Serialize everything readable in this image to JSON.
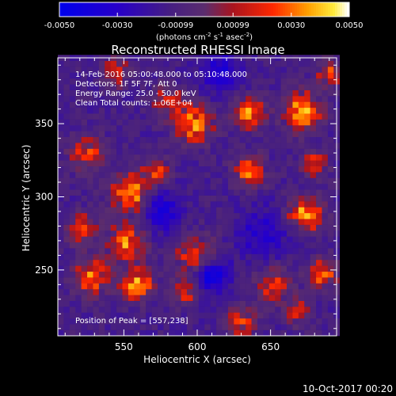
{
  "chart_data": {
    "type": "heatmap",
    "title": "Reconstructed RHESSI Image",
    "xlabel": "Heliocentric X (arcsec)",
    "ylabel": "Heliocentric Y (arcsec)",
    "xlim": [
      505,
      695
    ],
    "ylim": [
      205,
      395
    ],
    "xticks": [
      550,
      600,
      650
    ],
    "yticks": [
      250,
      300,
      350
    ],
    "colorbar": {
      "min": -0.005,
      "max": 0.005,
      "ticks": [
        "-0.0050",
        "-0.0030",
        "-0.00099",
        "0.00099",
        "0.0030",
        "0.0050"
      ],
      "tick_values": [
        -0.005,
        -0.003,
        -0.00099,
        0.00099,
        0.003,
        0.005
      ],
      "label_main": "(photons cm",
      "label_exp1": "-2",
      "label_mid1": " s",
      "label_exp2": "-1",
      "label_mid2": " asec",
      "label_exp3": "-2",
      "label_end": ")"
    },
    "annotations": [
      "14-Feb-2016 05:00:48.000 to 05:10:48.000",
      "Detectors: 1F 5F 7F, Att 0",
      "Energy Range: 25.0 - 50.0 keV",
      "Clean     Total counts: 1.06E+04"
    ],
    "peak_label": "Position of Peak = [557,238]",
    "peak": [
      557,
      238
    ],
    "grid": false,
    "blobs": [
      {
        "x": 555,
        "y": 302,
        "amp": 0.0046,
        "s": 9
      },
      {
        "x": 552,
        "y": 268,
        "amp": 0.004,
        "s": 9
      },
      {
        "x": 559,
        "y": 240,
        "amp": 0.005,
        "s": 7
      },
      {
        "x": 528,
        "y": 245,
        "amp": 0.0042,
        "s": 8
      },
      {
        "x": 522,
        "y": 278,
        "amp": 0.0036,
        "s": 7
      },
      {
        "x": 525,
        "y": 330,
        "amp": 0.003,
        "s": 8
      },
      {
        "x": 600,
        "y": 258,
        "amp": 0.0038,
        "s": 10
      },
      {
        "x": 592,
        "y": 235,
        "amp": 0.003,
        "s": 6
      },
      {
        "x": 598,
        "y": 350,
        "amp": 0.0042,
        "s": 9
      },
      {
        "x": 580,
        "y": 365,
        "amp": 0.003,
        "s": 7
      },
      {
        "x": 572,
        "y": 318,
        "amp": 0.0034,
        "s": 6
      },
      {
        "x": 636,
        "y": 318,
        "amp": 0.0042,
        "s": 7
      },
      {
        "x": 636,
        "y": 358,
        "amp": 0.0044,
        "s": 7
      },
      {
        "x": 672,
        "y": 358,
        "amp": 0.0048,
        "s": 9
      },
      {
        "x": 680,
        "y": 322,
        "amp": 0.0034,
        "s": 6
      },
      {
        "x": 674,
        "y": 288,
        "amp": 0.0046,
        "s": 8
      },
      {
        "x": 686,
        "y": 248,
        "amp": 0.004,
        "s": 7
      },
      {
        "x": 652,
        "y": 240,
        "amp": 0.0032,
        "s": 8
      },
      {
        "x": 630,
        "y": 215,
        "amp": 0.003,
        "s": 7
      },
      {
        "x": 668,
        "y": 222,
        "amp": 0.003,
        "s": 6
      },
      {
        "x": 690,
        "y": 385,
        "amp": 0.003,
        "s": 6
      },
      {
        "x": 545,
        "y": 385,
        "amp": 0.0026,
        "s": 7
      },
      {
        "x": 608,
        "y": 248,
        "amp": -0.0042,
        "s": 9
      },
      {
        "x": 575,
        "y": 290,
        "amp": -0.0026,
        "s": 10
      },
      {
        "x": 645,
        "y": 275,
        "amp": -0.002,
        "s": 12
      },
      {
        "x": 615,
        "y": 385,
        "amp": -0.0024,
        "s": 10
      }
    ]
  },
  "footer": {
    "timestamp": "10-Oct-2017 00:20"
  }
}
